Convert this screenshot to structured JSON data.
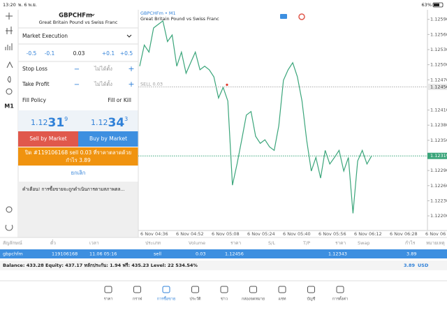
{
  "status_bar": {
    "time": "13:20",
    "date": "พ. 6 พ.ย.",
    "battery": "63%"
  },
  "toolbar": {
    "timeframe": "M1"
  },
  "order": {
    "symbol": "GBPCHFm",
    "description": "Great Britain Pound vs Swiss Franc",
    "execution": "Market Execution",
    "volume_steps": [
      "-0.5",
      "-0.1",
      "0.03",
      "+0.1",
      "+0.5"
    ],
    "stop_loss": {
      "label": "Stop Loss",
      "value": "ไม่ได้ตั้ง"
    },
    "take_profit": {
      "label": "Take Profit",
      "value": "ไม่ได้ตั้ง"
    },
    "fill_policy": {
      "label": "Fill Policy",
      "value": "Fill or Kill"
    },
    "bid": [
      "1.12",
      "31",
      "9"
    ],
    "ask": [
      "1.12",
      "34",
      "3"
    ],
    "sell_button": "Sell by Market",
    "buy_button": "Buy by Market",
    "close_banner": [
      "ปิด #119106168 sell 0.03 ที่ราคาตลาดด้วย",
      "กำไร 3.89"
    ],
    "cancel": "ยกเลิก",
    "warning": "คำเตือน! การซื้อขายจะถูกดำเนินการตามสภาพตล..."
  },
  "chart_data": {
    "type": "line",
    "title": "GBPCHFm • M1",
    "subtitle": "Great Britain Pound vs Swiss Franc",
    "x_labels": [
      "6 Nov 04:36",
      "6 Nov 04:52",
      "6 Nov 05:08",
      "6 Nov 05:24",
      "6 Nov 05:40",
      "6 Nov 05:56",
      "6 Nov 06:12",
      "6 Nov 06:28",
      "6 Nov 06"
    ],
    "values": [
      1.12497,
      1.12539,
      1.12525,
      1.12573,
      1.1258,
      1.12587,
      1.12546,
      1.12559,
      1.12497,
      1.12525,
      1.12483,
      1.12504,
      1.12525,
      1.1249,
      1.12497,
      1.1249,
      1.12476,
      1.12434,
      1.12455,
      1.12428,
      1.12261,
      1.12303,
      1.12351,
      1.124,
      1.12407,
      1.12358,
      1.12344,
      1.12351,
      1.12337,
      1.1233,
      1.12379,
      1.12469,
      1.1249,
      1.12504,
      1.12476,
      1.12428,
      1.12351,
      1.12289,
      1.12316,
      1.12275,
      1.1233,
      1.12303,
      1.12316,
      1.1233,
      1.12289,
      1.12316,
      1.12205,
      1.12309,
      1.1233,
      1.12303,
      1.12319
    ],
    "color": "#3aa57a",
    "ylim": [
      1.12171,
      1.12609
    ],
    "yticks": [
      {
        "value": 1.1259,
        "label": "1.12590"
      },
      {
        "value": 1.1256,
        "label": "1.12560"
      },
      {
        "value": 1.1253,
        "label": "1.12530"
      },
      {
        "value": 1.125,
        "label": "1.12500"
      },
      {
        "value": 1.1247,
        "label": "1.12470"
      },
      {
        "value": 1.1241,
        "label": "1.12410"
      },
      {
        "value": 1.1238,
        "label": "1.12380"
      },
      {
        "value": 1.1235,
        "label": "1.12350"
      },
      {
        "value": 1.1229,
        "label": "1.12290"
      },
      {
        "value": 1.1226,
        "label": "1.12260"
      },
      {
        "value": 1.1223,
        "label": "1.12230"
      },
      {
        "value": 1.122,
        "label": "1.12200"
      }
    ],
    "order_price": 1.12456,
    "order_label": "SELL 0.03",
    "current_price": 1.12319
  },
  "positions": {
    "columns": [
      "สัญลักษณ์",
      "ตั๋ว",
      "เวลา",
      "ประเภท",
      "Volume",
      "ราคา",
      "S/L",
      "T/P",
      "ราคา",
      "Swap",
      "กำไร",
      "หมายเหตุ"
    ],
    "row": {
      "symbol": "gbpchfm",
      "ticket": "119106168",
      "time": "11.06 05:16",
      "type": "sell",
      "volume": "0.03",
      "price": "1.12456",
      "current_price": "1.12343",
      "profit": "3.89"
    },
    "balance": "Balance: 433.28 Equity: 437.17 หลักประกัน: 1.94 ฟรี: 435.23 Level: 22 534.54%",
    "total_profit": "3.89",
    "currency": "USD"
  },
  "nav": [
    "ราคา",
    "กราฟ",
    "การซื้อขาย",
    "ประวัติ",
    "ข่าว",
    "กล่องจดหมาย",
    "แชท",
    "บัญชี",
    "การตั้งค่า"
  ]
}
